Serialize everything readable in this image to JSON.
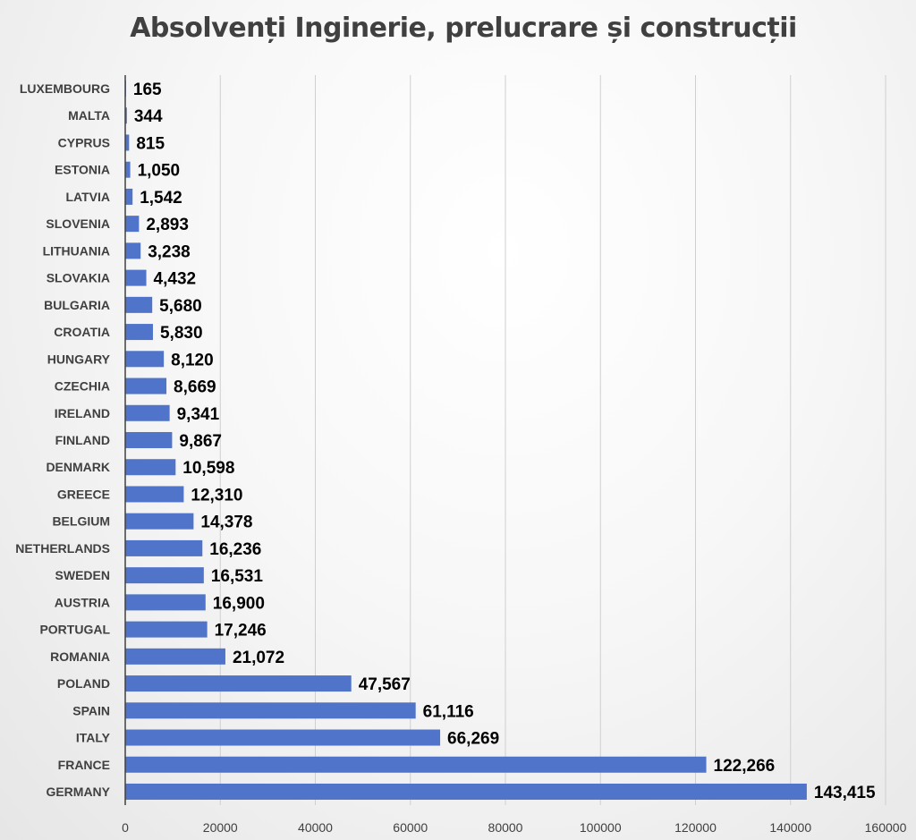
{
  "chart_data": {
    "type": "bar",
    "orientation": "horizontal",
    "title": "Absolvenți Inginerie, prelucrare și construcții",
    "xlabel": "",
    "ylabel": "",
    "xlim": [
      0,
      160000
    ],
    "x_ticks": [
      "0",
      "20000",
      "40000",
      "60000",
      "80000",
      "100000",
      "120000",
      "140000",
      "160000"
    ],
    "grid": "vertical",
    "bar_color": "#4F74C9",
    "categories": [
      "LUXEMBOURG",
      "MALTA",
      "CYPRUS",
      "ESTONIA",
      "LATVIA",
      "SLOVENIA",
      "LITHUANIA",
      "SLOVAKIA",
      "BULGARIA",
      "CROATIA",
      "HUNGARY",
      "CZECHIA",
      "IRELAND",
      "FINLAND",
      "DENMARK",
      "GREECE",
      "BELGIUM",
      "NETHERLANDS",
      "SWEDEN",
      "AUSTRIA",
      "PORTUGAL",
      "ROMANIA",
      "POLAND",
      "SPAIN",
      "ITALY",
      "FRANCE",
      "GERMANY"
    ],
    "values": [
      165,
      344,
      815,
      1050,
      1542,
      2893,
      3238,
      4432,
      5680,
      5830,
      8120,
      8669,
      9341,
      9867,
      10598,
      12310,
      14378,
      16236,
      16531,
      16900,
      17246,
      21072,
      47567,
      61116,
      66269,
      122266,
      143415
    ],
    "value_labels": [
      "165",
      "344",
      "815",
      "1,050",
      "1,542",
      "2,893",
      "3,238",
      "4,432",
      "5,680",
      "5,830",
      "8,120",
      "8,669",
      "9,341",
      "9,867",
      "10,598",
      "12,310",
      "14,378",
      "16,236",
      "16,531",
      "16,900",
      "17,246",
      "21,072",
      "47,567",
      "61,116",
      "66,269",
      "122,266",
      "143,415"
    ]
  }
}
